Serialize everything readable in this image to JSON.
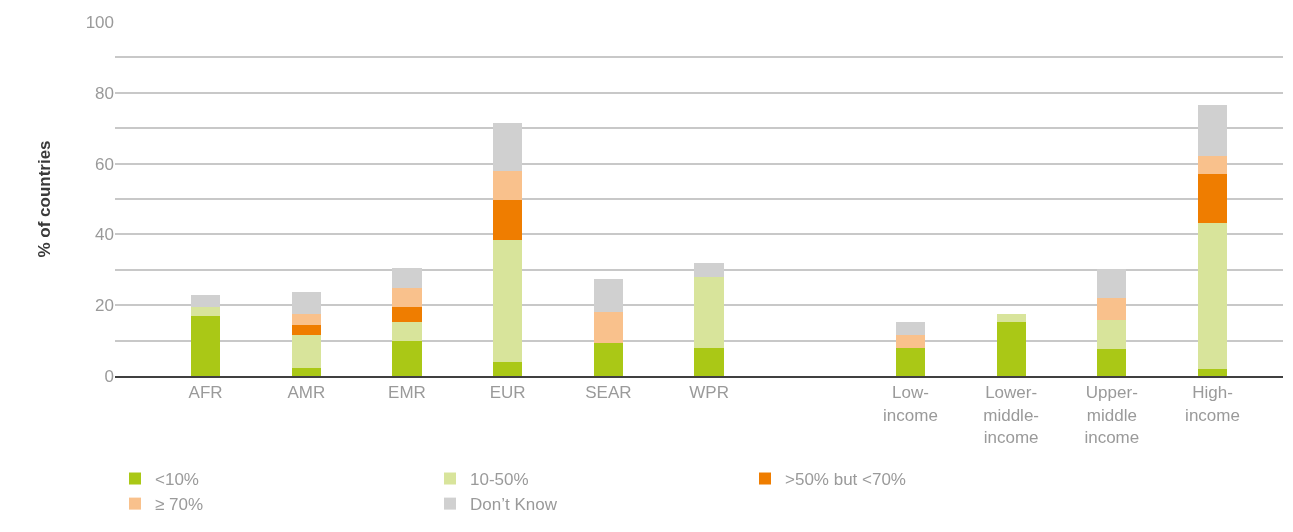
{
  "chart_data": {
    "type": "bar",
    "stacked": true,
    "ylabel": "% of countries",
    "categories": [
      "AFR",
      "AMR",
      "EMR",
      "EUR",
      "SEAR",
      "WPR",
      null,
      "Low-\nincome",
      "Lower-\nmiddle-\nincome",
      "Upper-\nmiddle\nincome",
      "High-\nincome"
    ],
    "series": [
      {
        "name": "<10%",
        "color": "#aac816",
        "values": [
          17,
          2.4,
          9.9,
          4,
          9.4,
          7.8,
          null,
          7.8,
          15.3,
          7.5,
          1.9
        ]
      },
      {
        "name": "10-50%",
        "color": "#d8e49b",
        "values": [
          2.5,
          9.1,
          5.4,
          34.3,
          0,
          20.1,
          null,
          0,
          2.1,
          8.3,
          41.2
        ]
      },
      {
        "name": ">50% but <70%",
        "color": "#ef7d00",
        "values": [
          0,
          3,
          4.3,
          11.3,
          0,
          0,
          null,
          0,
          0,
          0,
          14
        ]
      },
      {
        "name": "≥ 70%",
        "color": "#f9c18c",
        "values": [
          0,
          2.9,
          5.3,
          8.3,
          8.8,
          0,
          null,
          3.7,
          0,
          6.2,
          5
        ]
      },
      {
        "name": "Don’t Know",
        "color": "#d0d0d0",
        "values": [
          3.3,
          6.2,
          5.6,
          13.6,
          9.1,
          4,
          null,
          3.8,
          0,
          8.3,
          14.5
        ]
      }
    ],
    "ylim": [
      0,
      100
    ],
    "yticks": [
      0,
      {
        "value": 10,
        "label": null
      },
      20,
      {
        "value": 30,
        "label": null
      },
      40,
      {
        "value": 50,
        "label": null
      },
      60,
      {
        "value": 70,
        "label": null
      },
      80,
      {
        "value": 90,
        "label": null
      },
      100
    ],
    "grid": "y",
    "legend": "bottom"
  }
}
